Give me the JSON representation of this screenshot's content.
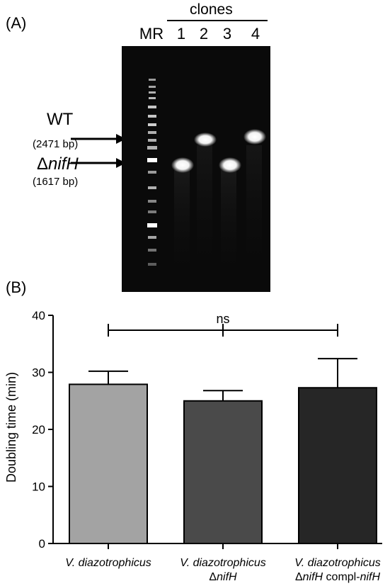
{
  "panel_a": {
    "label": "(A)",
    "clones_label": "clones",
    "lane_labels": [
      "MR",
      "1",
      "2",
      "3",
      "4"
    ],
    "wt_label": "WT",
    "wt_size": "(2471 bp)",
    "delta_prefix": "Δ",
    "delta_gene": "nifH",
    "delta_size": "(1617 bp)"
  },
  "panel_b": {
    "label": "(B)",
    "significance": "ns"
  },
  "colors": {
    "gel_background": "#0a0a0a",
    "bar_1": "#a3a3a3",
    "bar_2": "#4a4a4a",
    "bar_3": "#262626"
  },
  "chart_data": {
    "type": "bar",
    "categories": [
      "V. diazotrophicus",
      "V. diazotrophicus ΔnifH",
      "V. diazotrophicus ΔnifH compl-nifH"
    ],
    "category_lines": [
      [
        {
          "text": "V. diazotrophicus",
          "italic": true
        }
      ],
      [
        {
          "text": "V. diazotrophicus",
          "italic": true
        },
        {
          "text": "Δ",
          "italic": false,
          "newline": true
        },
        {
          "text": "nifH",
          "italic": true
        }
      ],
      [
        {
          "text": "V. diazotrophicus",
          "italic": true
        },
        {
          "text": "Δ",
          "italic": false,
          "newline": true
        },
        {
          "text": "nifH",
          "italic": true
        },
        {
          "text": " compl-",
          "italic": false
        },
        {
          "text": "nifH",
          "italic": true
        }
      ]
    ],
    "values": [
      27.9,
      25.0,
      27.3
    ],
    "error_upper": [
      30.2,
      26.8,
      32.4
    ],
    "ylabel": "Doubling time (min)",
    "xlabel": "",
    "ylim": [
      0,
      40
    ],
    "yticks": [
      0,
      10,
      20,
      30,
      40
    ]
  }
}
